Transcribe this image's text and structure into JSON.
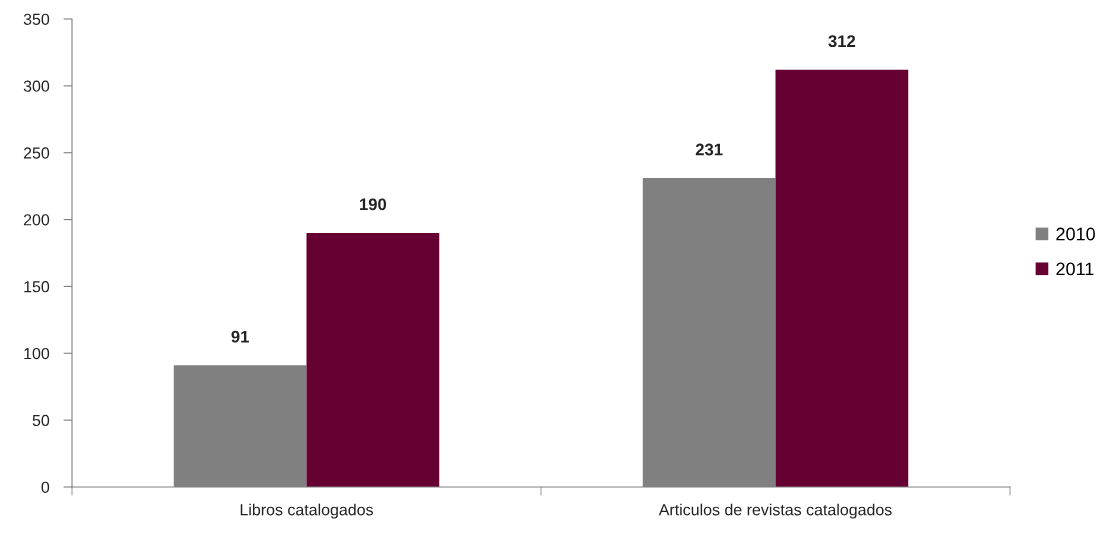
{
  "chart_data": {
    "type": "bar",
    "categories": [
      "Libros catalogados",
      "Articulos de revistas catalogados"
    ],
    "series": [
      {
        "name": "2010",
        "color": "#808080",
        "values": [
          91,
          231
        ]
      },
      {
        "name": "2011",
        "color": "#660033",
        "values": [
          190,
          312
        ]
      }
    ],
    "ylim": [
      0,
      350
    ],
    "yticks": [
      0,
      50,
      100,
      150,
      200,
      250,
      300,
      350
    ],
    "grid": false,
    "legend": "right",
    "data_labels": true
  }
}
